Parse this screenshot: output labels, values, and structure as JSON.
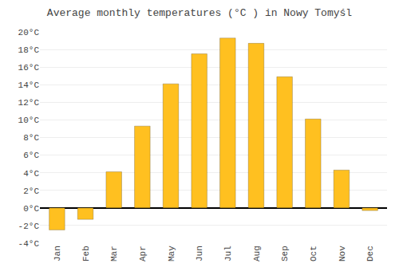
{
  "chart_data": {
    "type": "bar",
    "title": "Average monthly temperatures (°C ) in Nowy Tomyśl",
    "categories": [
      "Jan",
      "Feb",
      "Mar",
      "Apr",
      "May",
      "Jun",
      "Jul",
      "Aug",
      "Sep",
      "Oct",
      "Nov",
      "Dec"
    ],
    "values": [
      -2.5,
      -1.3,
      4.1,
      9.3,
      14.1,
      17.5,
      19.3,
      18.7,
      14.9,
      10.1,
      4.3,
      -0.3
    ],
    "color": "#FFC020",
    "ylim": [
      -4,
      20
    ],
    "yticks": [
      {
        "value": -4,
        "label": "-4°C"
      },
      {
        "value": -2,
        "label": "-2°C"
      },
      {
        "value": 0,
        "label": "0°C"
      },
      {
        "value": 2,
        "label": "2°C"
      },
      {
        "value": 4,
        "label": "4°C"
      },
      {
        "value": 6,
        "label": "6°C"
      },
      {
        "value": 8,
        "label": "8°C"
      },
      {
        "value": 10,
        "label": "10°C"
      },
      {
        "value": 12,
        "label": "12°C"
      },
      {
        "value": 14,
        "label": "14°C"
      },
      {
        "value": 16,
        "label": "16°C"
      },
      {
        "value": 18,
        "label": "18°C"
      },
      {
        "value": 20,
        "label": "20°C"
      }
    ],
    "grid": true
  }
}
